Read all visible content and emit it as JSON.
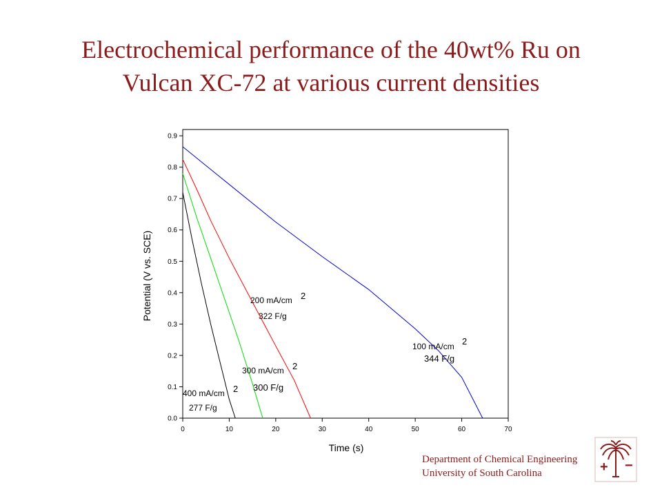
{
  "title": {
    "line1": "Electrochemical performance of the 40wt% Ru on",
    "line2": "Vulcan XC-72 at various current densities"
  },
  "footer": {
    "line1": "Department of Chemical Engineering",
    "line2": "University of South Carolina"
  },
  "logo": {
    "icon": "palmetto-tree-icon",
    "plus": "+",
    "minus": "−",
    "color": "#8b1a1a"
  },
  "chart_data": {
    "type": "line",
    "xlabel": "Time (s)",
    "ylabel": "Potential (V vs. SCE)",
    "xlim": [
      0,
      70
    ],
    "ylim": [
      0,
      0.92
    ],
    "xticks": [
      0,
      10,
      20,
      30,
      40,
      50,
      60,
      70
    ],
    "yticks": [
      0.0,
      0.1,
      0.2,
      0.3,
      0.4,
      0.5,
      0.6,
      0.7,
      0.8,
      0.9
    ],
    "xtick_labels": [
      "0",
      "10",
      "20",
      "30",
      "40",
      "50",
      "60",
      "70"
    ],
    "ytick_labels": [
      "0.0",
      "0.1",
      "0.2",
      "0.3",
      "0.4",
      "0.5",
      "0.6",
      "0.7",
      "0.8",
      "0.9"
    ],
    "grid": false,
    "series": [
      {
        "color": "#0000cc",
        "x": [
          0,
          5,
          10,
          20,
          30,
          40,
          50,
          55,
          60,
          64.5
        ],
        "y": [
          0.865,
          0.805,
          0.745,
          0.625,
          0.515,
          0.41,
          0.285,
          0.215,
          0.13,
          0.0
        ]
      },
      {
        "color": "#ff0000",
        "x": [
          0,
          3,
          6,
          10,
          15,
          20,
          24,
          27.5
        ],
        "y": [
          0.825,
          0.73,
          0.63,
          0.51,
          0.37,
          0.23,
          0.12,
          0.0
        ]
      },
      {
        "color": "#00dd00",
        "x": [
          0,
          3,
          6,
          9,
          12,
          15,
          17.2
        ],
        "y": [
          0.78,
          0.64,
          0.51,
          0.38,
          0.25,
          0.11,
          0.0
        ]
      },
      {
        "color": "#000000",
        "x": [
          0,
          2,
          4,
          6,
          8,
          10,
          11.3
        ],
        "y": [
          0.72,
          0.57,
          0.43,
          0.3,
          0.18,
          0.06,
          0.0
        ]
      }
    ],
    "annotations": [
      {
        "text": "100 mA/cm",
        "sup": "2",
        "capacitance": "344 F/g"
      },
      {
        "text": "200 mA/cm",
        "sup": "2",
        "capacitance": "322 F/g"
      },
      {
        "text": "300 mA/cm",
        "sup": "2",
        "capacitance": "300 F/g"
      },
      {
        "text": "400 mA/cm",
        "sup": "2",
        "capacitance": "277 F/g"
      }
    ]
  }
}
